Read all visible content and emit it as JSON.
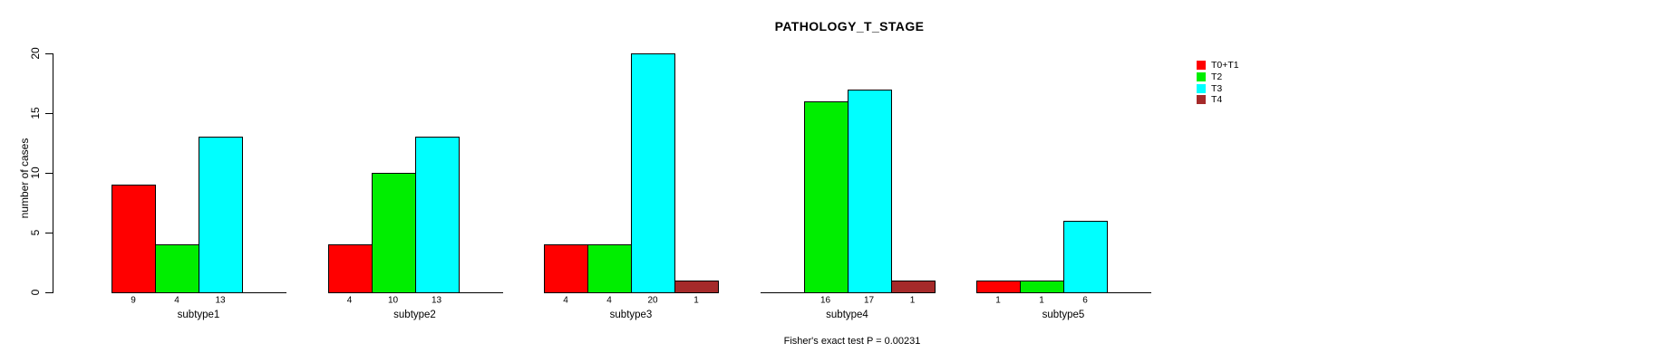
{
  "chart_data": {
    "type": "bar",
    "title": "PATHOLOGY_T_STAGE",
    "ylabel": "number of cases",
    "xlabel": "",
    "ylim": [
      0,
      20
    ],
    "yticks": [
      0,
      5,
      10,
      15,
      20
    ],
    "grid": false,
    "categories": [
      "subtype1",
      "subtype2",
      "subtype3",
      "subtype4",
      "subtype5"
    ],
    "series": [
      {
        "name": "T0+T1",
        "color": "#ff0000",
        "values": [
          9,
          4,
          4,
          0,
          1
        ]
      },
      {
        "name": "T2",
        "color": "#00ee00",
        "values": [
          4,
          10,
          4,
          16,
          1
        ]
      },
      {
        "name": "T3",
        "color": "#00ffff",
        "values": [
          13,
          13,
          20,
          17,
          6
        ]
      },
      {
        "name": "T4",
        "color": "#a52a2a",
        "values": [
          0,
          0,
          1,
          1,
          0
        ]
      }
    ],
    "bar_value_labels": {
      "subtype1": [
        "9",
        "4",
        "13",
        ""
      ],
      "subtype2": [
        "4",
        "10",
        "13",
        ""
      ],
      "subtype3": [
        "4",
        "4",
        "20",
        "1"
      ],
      "subtype4": [
        "",
        "16",
        "17",
        "1"
      ],
      "subtype5": [
        "1",
        "1",
        "6",
        ""
      ]
    },
    "legend": {
      "position": "right",
      "entries": [
        "T0+T1",
        "T2",
        "T3",
        "T4"
      ]
    },
    "annotation": "Fisher's exact test P = 0.00231"
  }
}
